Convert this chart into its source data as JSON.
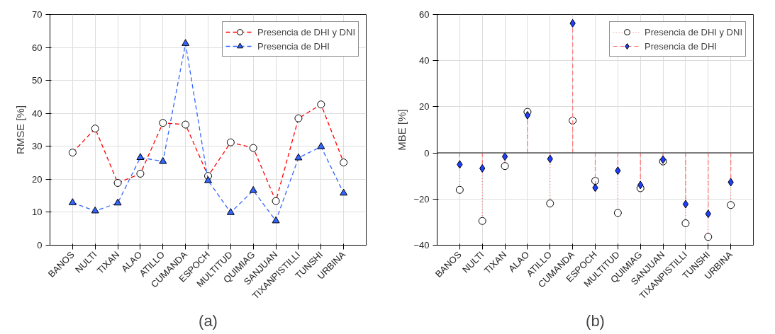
{
  "chart_data": [
    {
      "type": "line",
      "ylabel": "RMSE [%]",
      "categories": [
        "BANOS",
        "NULTI",
        "TIXAN",
        "ALAO",
        "ATILLO",
        "CUMANDA",
        "ESPOCH",
        "MULTITUD",
        "QUIMIAG",
        "SANJUAN",
        "TIXANPISTILLI",
        "TUNSHI",
        "URBINA"
      ],
      "ylim": [
        0,
        70
      ],
      "yticks": [
        0,
        10,
        20,
        30,
        40,
        50,
        60,
        70
      ],
      "grid": true,
      "legend": "top right",
      "line_style": "dashed",
      "annotations": [
        "(a)"
      ],
      "series": [
        {
          "name": "Presencia de DHI y DNI",
          "color": "#ff0000",
          "marker": "circle",
          "values": [
            28.1,
            35.4,
            18.9,
            21.7,
            37.1,
            36.6,
            21.0,
            31.2,
            29.5,
            13.4,
            38.5,
            42.7,
            25.1
          ]
        },
        {
          "name": "Presencia de DHI",
          "color": "#3366ff",
          "marker": "triangle",
          "values": [
            12.9,
            10.4,
            12.8,
            26.6,
            25.4,
            61.2,
            19.6,
            9.9,
            16.6,
            7.4,
            26.5,
            29.9,
            15.8
          ]
        }
      ]
    },
    {
      "type": "lollipop",
      "ylabel": "MBE [%]",
      "categories": [
        "BANOS",
        "NULTI",
        "TIXAN",
        "ALAO",
        "ATILLO",
        "CUMANDA",
        "ESPOCH",
        "MULTITUD",
        "QUIMIAG",
        "SANJUAN",
        "TIXANPISTILLI",
        "TUNSHI",
        "URBINA"
      ],
      "ylim": [
        -40,
        60
      ],
      "yticks": [
        -40,
        -20,
        0,
        20,
        40,
        60
      ],
      "grid": true,
      "legend": "top right",
      "annotations": [
        "(b)"
      ],
      "ref_lines": [
        {
          "axis": "y",
          "value": 0,
          "color": "#555555"
        }
      ],
      "series": [
        {
          "name": "Presencia de DHI y DNI",
          "color": "#ffffff",
          "marker": "circle",
          "line_style": "dotted",
          "values": [
            -16.0,
            -29.5,
            -5.7,
            17.8,
            -21.9,
            14.0,
            -12.1,
            -26.0,
            -15.3,
            -3.7,
            -30.5,
            -36.4,
            -22.6
          ]
        },
        {
          "name": "Presencia de DHI",
          "color": "#1f3fff",
          "marker": "diamond",
          "line_style": "dashed",
          "values": [
            -5.0,
            -6.7,
            -1.6,
            16.3,
            -2.6,
            56.2,
            -15.1,
            -7.7,
            -13.9,
            -2.9,
            -22.2,
            -26.4,
            -12.7
          ]
        }
      ]
    }
  ]
}
